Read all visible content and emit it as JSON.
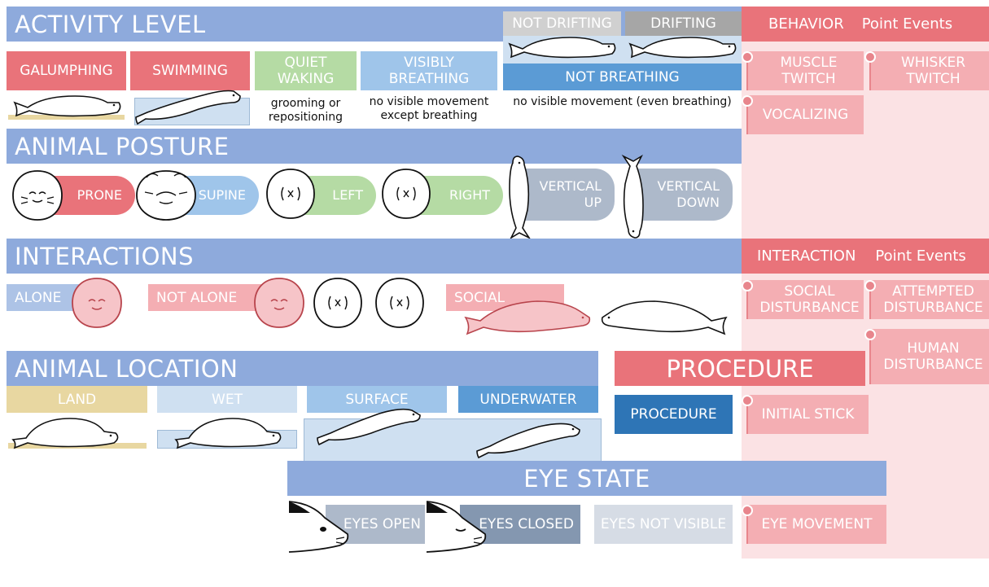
{
  "activity": {
    "header": "ACTIVITY LEVEL",
    "not_drifting": "NOT DRIFTING",
    "drifting": "DRIFTING",
    "galumphing": "GALUMPHING",
    "swimming": "SWIMMING",
    "quiet_waking": "QUIET WAKING",
    "visibly_breathing": "VISIBLY BREATHING",
    "not_breathing": "NOT BREATHING",
    "quiet_waking_note": "grooming or repositioning",
    "visibly_breathing_note": "no visible movement except breathing",
    "not_breathing_note": "no visible movement (even breathing)"
  },
  "behavior": {
    "header": "BEHAVIOR",
    "header_suffix": "Point Events",
    "muscle_twitch": "MUSCLE TWITCH",
    "whisker_twitch": "WHISKER TWITCH",
    "vocalizing": "VOCALIZING"
  },
  "posture": {
    "header": "ANIMAL POSTURE",
    "prone": "PRONE",
    "supine": "SUPINE",
    "left": "LEFT",
    "right": "RIGHT",
    "vertical_up": "VERTICAL UP",
    "vertical_down": "VERTICAL DOWN"
  },
  "interactions": {
    "header": "INTERACTIONS",
    "alone": "ALONE",
    "not_alone": "NOT ALONE",
    "social": "SOCIAL"
  },
  "interaction_events": {
    "header": "INTERACTION",
    "header_suffix": "Point Events",
    "social_disturbance": "SOCIAL DISTURBANCE",
    "attempted_disturbance": "ATTEMPTED DISTURBANCE",
    "human_disturbance": "HUMAN DISTURBANCE"
  },
  "location": {
    "header": "ANIMAL LOCATION",
    "land": "LAND",
    "wet": "WET",
    "surface": "SURFACE",
    "underwater": "UNDERWATER"
  },
  "procedure": {
    "header": "PROCEDURE",
    "procedure": "PROCEDURE",
    "initial_stick": "INITIAL STICK"
  },
  "eye": {
    "header": "EYE STATE",
    "open": "EYES OPEN",
    "closed": "EYES CLOSED",
    "not_visible": "EYES NOT VISIBLE",
    "movement": "EYE MOVEMENT"
  },
  "colors": {
    "header_blue": "#8eaadc",
    "pink_panel": "#fbe2e4",
    "red": "#e9737a",
    "pink_light": "#f4aeb3",
    "green": "#b5dba4",
    "light_blue": "#9fc5ea",
    "mid_blue": "#5b9bd5",
    "dark_blue": "#2e75b6",
    "slate": "#adb9ca",
    "sand": "#e8d7a1",
    "water": "#cfe0f1"
  }
}
